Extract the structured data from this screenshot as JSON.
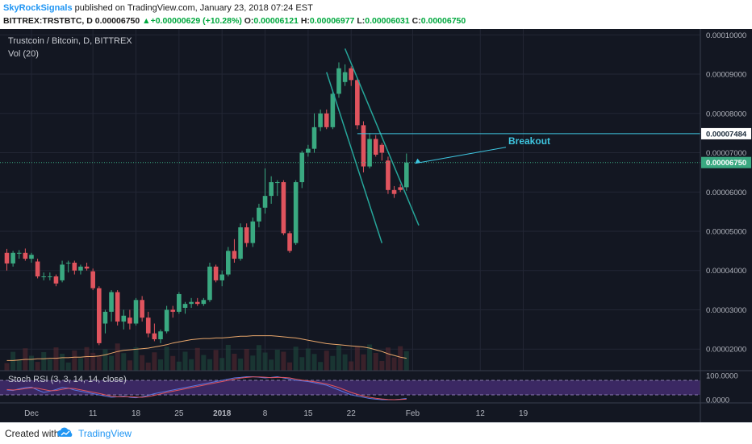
{
  "header": {
    "author": "SkyRockSignals",
    "publish_text": "published on TradingView.com, January 23, 2018 07:24 EST",
    "symbol": "BITTREX:TRSTBTC, D",
    "last": "0.00006750",
    "change_arrow": "▲",
    "change": "+0.00000629 (+10.28%)",
    "o_label": "O:",
    "o": "0.00006121",
    "h_label": "H:",
    "h": "0.00006977",
    "l_label": "L:",
    "l": "0.00006031",
    "c_label": "C:",
    "c": "0.00006750"
  },
  "footer": {
    "created": "Created with",
    "brand": "TradingView",
    "logo_icon": "tradingview-cloud-icon"
  },
  "chart_data": {
    "type": "candlestick",
    "title": "Trustcoin / Bitcoin, D, BITTREX",
    "volume_label": "Vol (20)",
    "colors": {
      "background": "#131722",
      "grid": "#232735",
      "up": "#3aa981",
      "down": "#e0545e",
      "channel": "#26a69a",
      "marker": "#3ec6e0",
      "vol_ma": "#e8a66b",
      "rsi_band": "#4a2f7a",
      "rsi_k": "#5a76e0",
      "rsi_d": "#e0545e",
      "axis_text": "#b2b5be"
    },
    "y_axis": {
      "min": 1.45e-05,
      "max": 0.0001015,
      "ticks": [
        "0.00010000",
        "0.00009000",
        "0.00008000",
        "0.00007000",
        "0.00006000",
        "0.00005000",
        "0.00004000",
        "0.00003000",
        "0.00002000"
      ],
      "tick_values": [
        0.0001,
        9e-05,
        8e-05,
        7e-05,
        6e-05,
        5e-05,
        4e-05,
        3e-05,
        2e-05
      ],
      "last_price_label": "0.00006750",
      "last_price": 6.75e-05,
      "marker_label": "0.00007484",
      "marker_price": 7.484e-05
    },
    "x_axis": {
      "start_date": "2017-11-27",
      "ticks": [
        {
          "label": "Dec",
          "day": 4
        },
        {
          "label": "11",
          "day": 14
        },
        {
          "label": "18",
          "day": 21
        },
        {
          "label": "25",
          "day": 28
        },
        {
          "label": "2018",
          "day": 35
        },
        {
          "label": "8",
          "day": 42
        },
        {
          "label": "15",
          "day": 49
        },
        {
          "label": "22",
          "day": 56
        },
        {
          "label": "Feb",
          "day": 66
        },
        {
          "label": "12",
          "day": 77
        },
        {
          "label": "19",
          "day": 84
        }
      ]
    },
    "candles": [
      {
        "d": 0,
        "o": 4.45e-05,
        "h": 4.55e-05,
        "l": 4e-05,
        "c": 4.18e-05
      },
      {
        "d": 1,
        "o": 4.18e-05,
        "h": 4.5e-05,
        "l": 4.1e-05,
        "c": 4.45e-05
      },
      {
        "d": 2,
        "o": 4.45e-05,
        "h": 4.52e-05,
        "l": 4.3e-05,
        "c": 4.45e-05
      },
      {
        "d": 3,
        "o": 4.45e-05,
        "h": 4.56e-05,
        "l": 4.25e-05,
        "c": 4.3e-05
      },
      {
        "d": 4,
        "o": 4.3e-05,
        "h": 4.45e-05,
        "l": 4.2e-05,
        "c": 4.4e-05
      },
      {
        "d": 5,
        "o": 4.23e-05,
        "h": 4.3e-05,
        "l": 3.8e-05,
        "c": 3.85e-05
      },
      {
        "d": 6,
        "o": 3.85e-05,
        "h": 3.95e-05,
        "l": 3.75e-05,
        "c": 3.85e-05
      },
      {
        "d": 7,
        "o": 3.85e-05,
        "h": 3.95e-05,
        "l": 3.75e-05,
        "c": 3.85e-05
      },
      {
        "d": 8,
        "o": 3.85e-05,
        "h": 3.9e-05,
        "l": 3.6e-05,
        "c": 3.67e-05
      },
      {
        "d": 9,
        "o": 3.75e-05,
        "h": 4.25e-05,
        "l": 3.7e-05,
        "c": 4.15e-05
      },
      {
        "d": 10,
        "o": 4.18e-05,
        "h": 4.25e-05,
        "l": 3.95e-05,
        "c": 4.2e-05
      },
      {
        "d": 11,
        "o": 4.2e-05,
        "h": 4.25e-05,
        "l": 3.9e-05,
        "c": 4e-05
      },
      {
        "d": 12,
        "o": 4e-05,
        "h": 4.15e-05,
        "l": 3.9e-05,
        "c": 4.1e-05
      },
      {
        "d": 13,
        "o": 4.1e-05,
        "h": 4.2e-05,
        "l": 4e-05,
        "c": 4.05e-05
      },
      {
        "d": 14,
        "o": 3.98e-05,
        "h": 4.05e-05,
        "l": 3.5e-05,
        "c": 3.55e-05
      },
      {
        "d": 15,
        "o": 3.55e-05,
        "h": 3.6e-05,
        "l": 2.1e-05,
        "c": 2.15e-05
      },
      {
        "d": 16,
        "o": 2.65e-05,
        "h": 3e-05,
        "l": 2.4e-05,
        "c": 2.95e-05
      },
      {
        "d": 17,
        "o": 2.95e-05,
        "h": 3.5e-05,
        "l": 2.7e-05,
        "c": 3.45e-05
      },
      {
        "d": 18,
        "o": 3.45e-05,
        "h": 3.5e-05,
        "l": 2.6e-05,
        "c": 2.7e-05
      },
      {
        "d": 19,
        "o": 2.7e-05,
        "h": 3e-05,
        "l": 2.5e-05,
        "c": 2.85e-05
      },
      {
        "d": 20,
        "o": 2.8e-05,
        "h": 3e-05,
        "l": 2.5e-05,
        "c": 2.65e-05
      },
      {
        "d": 21,
        "o": 2.65e-05,
        "h": 3.3e-05,
        "l": 2.6e-05,
        "c": 3.25e-05
      },
      {
        "d": 22,
        "o": 3.25e-05,
        "h": 3.35e-05,
        "l": 2.7e-05,
        "c": 2.8e-05
      },
      {
        "d": 23,
        "o": 2.8e-05,
        "h": 2.95e-05,
        "l": 2.3e-05,
        "c": 2.4e-05
      },
      {
        "d": 24,
        "o": 2.4e-05,
        "h": 2.65e-05,
        "l": 2.2e-05,
        "c": 2.25e-05
      },
      {
        "d": 25,
        "o": 2.25e-05,
        "h": 2.5e-05,
        "l": 2.15e-05,
        "c": 2.45e-05
      },
      {
        "d": 26,
        "o": 2.45e-05,
        "h": 3.1e-05,
        "l": 2.4e-05,
        "c": 3e-05
      },
      {
        "d": 27,
        "o": 3e-05,
        "h": 3.1e-05,
        "l": 2.8e-05,
        "c": 2.95e-05
      },
      {
        "d": 28,
        "o": 2.95e-05,
        "h": 3.45e-05,
        "l": 2.9e-05,
        "c": 3.4e-05
      },
      {
        "d": 29,
        "o": 3.05e-05,
        "h": 3.2e-05,
        "l": 2.9e-05,
        "c": 3.15e-05
      },
      {
        "d": 30,
        "o": 3.15e-05,
        "h": 3.3e-05,
        "l": 3.05e-05,
        "c": 3.2e-05
      },
      {
        "d": 31,
        "o": 3.2e-05,
        "h": 3.3e-05,
        "l": 3.1e-05,
        "c": 3.15e-05
      },
      {
        "d": 32,
        "o": 3.15e-05,
        "h": 3.3e-05,
        "l": 3.1e-05,
        "c": 3.25e-05
      },
      {
        "d": 33,
        "o": 3.25e-05,
        "h": 4.2e-05,
        "l": 3.2e-05,
        "c": 4.1e-05
      },
      {
        "d": 34,
        "o": 4.1e-05,
        "h": 4.15e-05,
        "l": 3.7e-05,
        "c": 3.75e-05
      },
      {
        "d": 35,
        "o": 3.75e-05,
        "h": 4e-05,
        "l": 3.6e-05,
        "c": 3.9e-05
      },
      {
        "d": 36,
        "o": 3.9e-05,
        "h": 4.6e-05,
        "l": 3.85e-05,
        "c": 4.5e-05
      },
      {
        "d": 37,
        "o": 4.5e-05,
        "h": 4.8e-05,
        "l": 4.2e-05,
        "c": 4.3e-05
      },
      {
        "d": 38,
        "o": 4.3e-05,
        "h": 5.2e-05,
        "l": 4.25e-05,
        "c": 5.1e-05
      },
      {
        "d": 39,
        "o": 5.1e-05,
        "h": 5.2e-05,
        "l": 4.6e-05,
        "c": 4.7e-05
      },
      {
        "d": 40,
        "o": 4.7e-05,
        "h": 5.35e-05,
        "l": 4.6e-05,
        "c": 5.25e-05
      },
      {
        "d": 41,
        "o": 5.25e-05,
        "h": 5.7e-05,
        "l": 5.1e-05,
        "c": 5.6e-05
      },
      {
        "d": 42,
        "o": 5.6e-05,
        "h": 6.6e-05,
        "l": 5.45e-05,
        "c": 5.9e-05
      },
      {
        "d": 43,
        "o": 5.9e-05,
        "h": 6.4e-05,
        "l": 5.7e-05,
        "c": 6.25e-05
      },
      {
        "d": 44,
        "o": 6.25e-05,
        "h": 6.3e-05,
        "l": 5.9e-05,
        "c": 6.25e-05
      },
      {
        "d": 45,
        "o": 6.25e-05,
        "h": 6.3e-05,
        "l": 4.9e-05,
        "c": 4.95e-05
      },
      {
        "d": 46,
        "o": 4.95e-05,
        "h": 5e-05,
        "l": 4.45e-05,
        "c": 4.5e-05
      },
      {
        "d": 47,
        "o": 4.7e-05,
        "h": 6.3e-05,
        "l": 4.65e-05,
        "c": 6.25e-05
      },
      {
        "d": 48,
        "o": 6.25e-05,
        "h": 7.05e-05,
        "l": 6.1e-05,
        "c": 7e-05
      },
      {
        "d": 49,
        "o": 7e-05,
        "h": 7.2e-05,
        "l": 6.9e-05,
        "c": 7.1e-05
      },
      {
        "d": 50,
        "o": 7.1e-05,
        "h": 8e-05,
        "l": 7e-05,
        "c": 7.65e-05
      },
      {
        "d": 51,
        "o": 7.65e-05,
        "h": 8.1e-05,
        "l": 7.55e-05,
        "c": 8e-05
      },
      {
        "d": 52,
        "o": 8e-05,
        "h": 8.1e-05,
        "l": 7.6e-05,
        "c": 7.65e-05
      },
      {
        "d": 53,
        "o": 7.65e-05,
        "h": 8.6e-05,
        "l": 7.6e-05,
        "c": 8.5e-05
      },
      {
        "d": 54,
        "o": 8.5e-05,
        "h": 9.3e-05,
        "l": 8.4e-05,
        "c": 9.15e-05
      },
      {
        "d": 55,
        "o": 8.8e-05,
        "h": 9.25e-05,
        "l": 8.7e-05,
        "c": 9.05e-05
      },
      {
        "d": 56,
        "o": 9.15e-05,
        "h": 9.2e-05,
        "l": 8.7e-05,
        "c": 8.85e-05
      },
      {
        "d": 57,
        "o": 8.85e-05,
        "h": 8.9e-05,
        "l": 7.6e-05,
        "c": 7.7e-05
      },
      {
        "d": 58,
        "o": 7.7e-05,
        "h": 7.8e-05,
        "l": 6.5e-05,
        "c": 6.65e-05
      },
      {
        "d": 59,
        "o": 6.65e-05,
        "h": 7.5e-05,
        "l": 6.6e-05,
        "c": 7.35e-05
      },
      {
        "d": 60,
        "o": 7.35e-05,
        "h": 7.45e-05,
        "l": 6.9e-05,
        "c": 6.95e-05
      },
      {
        "d": 61,
        "o": 7.2e-05,
        "h": 7.25e-05,
        "l": 6.8e-05,
        "c": 7e-05
      },
      {
        "d": 62,
        "o": 6.8e-05,
        "h": 6.9e-05,
        "l": 5.95e-05,
        "c": 6.05e-05
      },
      {
        "d": 63,
        "o": 6.05e-05,
        "h": 6.15e-05,
        "l": 5.85e-05,
        "c": 5.95e-05
      },
      {
        "d": 64,
        "o": 6.12e-05,
        "h": 6.2e-05,
        "l": 6e-05,
        "c": 6.05e-05
      },
      {
        "d": 65,
        "o": 6.12e-05,
        "h": 6.98e-05,
        "l": 6.03e-05,
        "c": 6.75e-05
      }
    ],
    "volume_ma": [
      0.18,
      0.18,
      0.19,
      0.2,
      0.2,
      0.21,
      0.21,
      0.22,
      0.22,
      0.23,
      0.23,
      0.24,
      0.24,
      0.25,
      0.25,
      0.26,
      0.28,
      0.31,
      0.34,
      0.36,
      0.37,
      0.38,
      0.39,
      0.4,
      0.42,
      0.44,
      0.46,
      0.49,
      0.51,
      0.53,
      0.55,
      0.56,
      0.57,
      0.57,
      0.58,
      0.58,
      0.59,
      0.6,
      0.61,
      0.61,
      0.62,
      0.62,
      0.62,
      0.62,
      0.61,
      0.6,
      0.59,
      0.58,
      0.56,
      0.54,
      0.52,
      0.5,
      0.48,
      0.47,
      0.46,
      0.45,
      0.44,
      0.43,
      0.42,
      0.4,
      0.37,
      0.34,
      0.3,
      0.27,
      0.24,
      0.22
    ],
    "stoch_rsi": {
      "label": "Stoch RSI (3, 3, 14, 14, close)",
      "upper": 80,
      "lower": 20,
      "ticks": [
        "100.0000",
        "0.0000"
      ],
      "k": [
        40,
        38,
        45,
        50,
        52,
        40,
        30,
        35,
        42,
        50,
        48,
        40,
        35,
        30,
        25,
        20,
        15,
        10,
        12,
        15,
        10,
        8,
        12,
        18,
        25,
        30,
        35,
        40,
        45,
        50,
        55,
        60,
        65,
        70,
        75,
        80,
        85,
        90,
        92,
        95,
        95,
        93,
        90,
        92,
        95,
        90,
        85,
        80,
        78,
        75,
        70,
        65,
        60,
        50,
        40,
        30,
        20,
        15,
        10,
        5,
        2,
        0,
        0,
        0,
        2,
        5
      ],
      "d": [
        42,
        40,
        42,
        46,
        49,
        47,
        42,
        37,
        38,
        43,
        47,
        46,
        41,
        36,
        31,
        26,
        20,
        15,
        12,
        12,
        12,
        11,
        10,
        13,
        18,
        24,
        30,
        35,
        40,
        45,
        50,
        55,
        60,
        65,
        70,
        75,
        80,
        85,
        89,
        92,
        94,
        94,
        93,
        91,
        92,
        92,
        90,
        85,
        81,
        78,
        74,
        70,
        65,
        58,
        50,
        40,
        30,
        22,
        15,
        10,
        6,
        3,
        1,
        0,
        1,
        2
      ]
    },
    "channel": {
      "line1": [
        {
          "d": 52,
          "p": 9.05e-05
        },
        {
          "d": 61,
          "p": 4.7e-05
        }
      ],
      "line2": [
        {
          "d": 55,
          "p": 9.65e-05
        },
        {
          "d": 67,
          "p": 5.15e-05
        }
      ]
    },
    "resistance": {
      "from_day": 57,
      "price": 7.484e-05
    },
    "annotation": {
      "text": "Breakout",
      "arrow_to_day": 66,
      "arrow_to_price": 6.75e-05
    }
  }
}
